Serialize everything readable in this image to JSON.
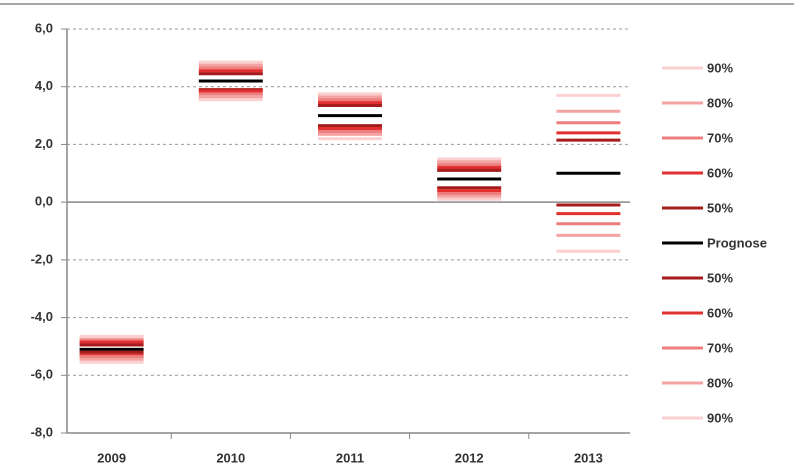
{
  "chart_data": {
    "type": "fan",
    "categories": [
      "2009",
      "2010",
      "2011",
      "2012",
      "2013"
    ],
    "ylim": [
      -8,
      6
    ],
    "yticks": [
      {
        "value": 6,
        "label": "6,0"
      },
      {
        "value": 4,
        "label": "4,0"
      },
      {
        "value": 2,
        "label": "2,0"
      },
      {
        "value": 0,
        "label": "0,0"
      },
      {
        "value": -2,
        "label": "-2,0"
      },
      {
        "value": -4,
        "label": "-4,0"
      },
      {
        "value": -6,
        "label": "-6,0"
      },
      {
        "value": -8,
        "label": "-8,0"
      }
    ],
    "grid": true,
    "legend": "right",
    "series": [
      {
        "name": "90%",
        "color": "#fbd0d0",
        "values": [
          -4.65,
          4.85,
          3.75,
          1.5,
          3.7
        ]
      },
      {
        "name": "80%",
        "color": "#f4a3a3",
        "values": [
          -4.75,
          4.75,
          3.65,
          1.4,
          3.15
        ]
      },
      {
        "name": "70%",
        "color": "#ee7d7d",
        "values": [
          -4.8,
          4.65,
          3.55,
          1.3,
          2.75
        ]
      },
      {
        "name": "60%",
        "color": "#e03030",
        "values": [
          -4.85,
          4.55,
          3.45,
          1.2,
          2.4
        ]
      },
      {
        "name": "50%",
        "color": "#a61b1b",
        "values": [
          -4.95,
          4.45,
          3.35,
          1.1,
          2.15
        ]
      },
      {
        "name": "Prognose",
        "color": "#000000",
        "values": [
          -5.1,
          4.2,
          3.0,
          0.8,
          1.0
        ]
      },
      {
        "name": "50%",
        "color": "#a61b1b",
        "values": [
          -5.2,
          3.9,
          2.65,
          0.5,
          -0.1
        ]
      },
      {
        "name": "60%",
        "color": "#e03030",
        "values": [
          -5.3,
          3.85,
          2.55,
          0.4,
          -0.4
        ]
      },
      {
        "name": "70%",
        "color": "#ee7d7d",
        "values": [
          -5.35,
          3.75,
          2.45,
          0.3,
          -0.75
        ]
      },
      {
        "name": "80%",
        "color": "#f4a3a3",
        "values": [
          -5.45,
          3.65,
          2.35,
          0.2,
          -1.15
        ]
      },
      {
        "name": "90%",
        "color": "#fbd0d0",
        "values": [
          -5.55,
          3.55,
          2.2,
          0.1,
          -1.7
        ]
      }
    ]
  }
}
